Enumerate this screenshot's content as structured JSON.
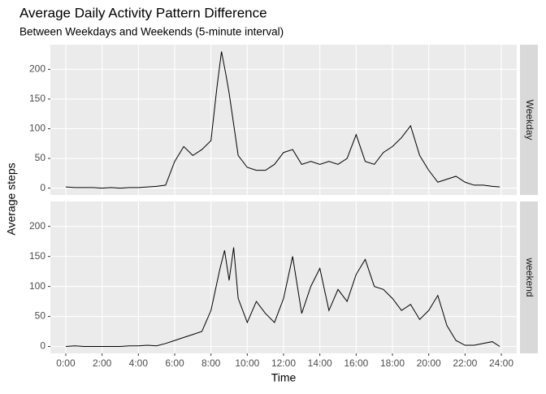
{
  "chart_data": {
    "type": "line",
    "title": "Average Daily Activity Pattern Difference",
    "subtitle": "Between Weekdays and Weekends (5-minute interval)",
    "x_label": "Time",
    "y_label": "Average steps",
    "color": "#000000",
    "grid": true,
    "xlim": [
      -0.85,
      24.85
    ],
    "ylim": [
      -11.5,
      241.5
    ],
    "xticks": [
      {
        "value": 0,
        "label": "0:00"
      },
      {
        "value": 2,
        "label": "2:00"
      },
      {
        "value": 4,
        "label": "4:00"
      },
      {
        "value": 6,
        "label": "6:00"
      },
      {
        "value": 8,
        "label": "8:00"
      },
      {
        "value": 10,
        "label": "10:00"
      },
      {
        "value": 12,
        "label": "12:00"
      },
      {
        "value": 14,
        "label": "14:00"
      },
      {
        "value": 16,
        "label": "16:00"
      },
      {
        "value": 18,
        "label": "18:00"
      },
      {
        "value": 20,
        "label": "20:00"
      },
      {
        "value": 22,
        "label": "22:00"
      },
      {
        "value": 24,
        "label": "24:00"
      }
    ],
    "yticks": [
      0,
      50,
      100,
      150,
      200
    ],
    "series": [
      {
        "name": "Weekday",
        "x": [
          0,
          0.5,
          1,
          1.5,
          2,
          2.5,
          3,
          3.5,
          4,
          4.5,
          5,
          5.5,
          6,
          6.5,
          7,
          7.5,
          8,
          8.33,
          8.58,
          8.83,
          9,
          9.5,
          10,
          10.5,
          11,
          11.5,
          12,
          12.5,
          13,
          13.5,
          14,
          14.5,
          15,
          15.5,
          16,
          16.5,
          17,
          17.5,
          18,
          18.5,
          19,
          19.5,
          20,
          20.5,
          21,
          21.5,
          22,
          22.5,
          23,
          23.5,
          23.917
        ],
        "values": [
          2,
          1,
          1,
          1,
          0,
          1,
          0,
          1,
          1,
          2,
          3,
          5,
          45,
          70,
          55,
          65,
          80,
          170,
          230,
          190,
          160,
          55,
          35,
          30,
          30,
          40,
          60,
          65,
          40,
          45,
          40,
          45,
          40,
          50,
          90,
          45,
          40,
          60,
          70,
          85,
          105,
          55,
          30,
          10,
          15,
          20,
          10,
          5,
          5,
          3,
          2
        ]
      },
      {
        "name": "weekend",
        "x": [
          0,
          0.5,
          1,
          1.5,
          2,
          2.5,
          3,
          3.5,
          4,
          4.5,
          5,
          5.5,
          6,
          6.5,
          7,
          7.5,
          8,
          8.5,
          8.75,
          9,
          9.25,
          9.5,
          10,
          10.5,
          11,
          11.5,
          12,
          12.5,
          13,
          13.5,
          14,
          14.5,
          15,
          15.5,
          16,
          16.5,
          17,
          17.5,
          18,
          18.5,
          19,
          19.5,
          20,
          20.5,
          21,
          21.5,
          22,
          22.5,
          23,
          23.5,
          23.917
        ],
        "values": [
          0,
          1,
          0,
          0,
          0,
          0,
          0,
          1,
          1,
          2,
          1,
          5,
          10,
          15,
          20,
          25,
          60,
          130,
          160,
          110,
          165,
          80,
          40,
          75,
          55,
          40,
          80,
          150,
          55,
          100,
          130,
          60,
          95,
          75,
          120,
          145,
          100,
          95,
          80,
          60,
          70,
          45,
          60,
          85,
          35,
          10,
          2,
          2,
          5,
          8,
          0
        ]
      }
    ]
  }
}
